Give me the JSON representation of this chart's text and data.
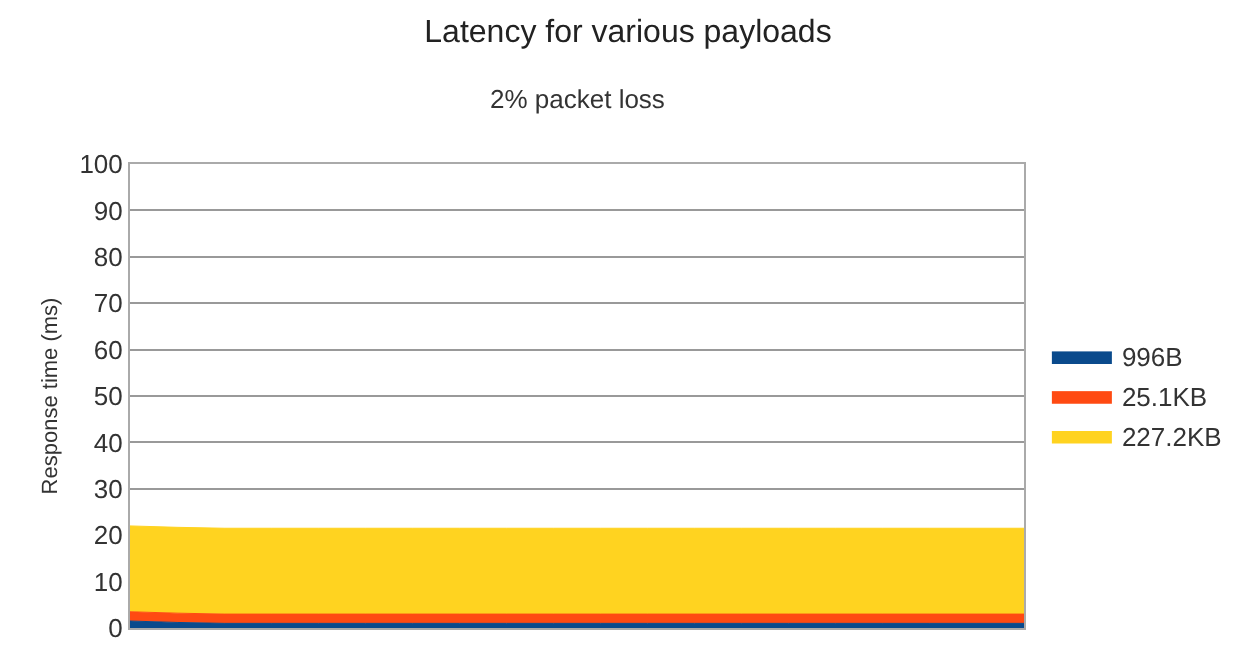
{
  "chart_data": {
    "type": "area",
    "stacked": true,
    "title": "Latency for various payloads",
    "subtitle": "2% packet loss",
    "ylabel": "Response time (ms)",
    "categories": [
      null,
      null,
      null,
      null,
      null,
      null,
      null,
      null,
      null,
      null,
      null,
      null,
      null,
      null,
      null,
      null,
      null,
      null,
      null,
      null
    ],
    "series": [
      {
        "name": "996B",
        "color": "#0a4a8c",
        "values": [
          1.5,
          1.2,
          1,
          1,
          1,
          1,
          1,
          1,
          1,
          1,
          1,
          1,
          1,
          1,
          1,
          1,
          1,
          1,
          1,
          1
        ]
      },
      {
        "name": "25.1KB",
        "color": "#ff4a12",
        "values": [
          2,
          2,
          2,
          2,
          2,
          2,
          2,
          2,
          2,
          2,
          2,
          2,
          2,
          2,
          2,
          2,
          2,
          2,
          2,
          2
        ]
      },
      {
        "name": "227.2KB",
        "color": "#ffd320",
        "values": [
          18.5,
          18.5,
          18.5,
          18.5,
          18.5,
          18.5,
          18.5,
          18.5,
          18.5,
          18.5,
          18.5,
          18.5,
          18.5,
          18.5,
          18.5,
          18.5,
          18.5,
          18.5,
          18.5,
          18.5
        ]
      }
    ],
    "ylim": [
      0,
      100
    ],
    "yticks": [
      0,
      10,
      20,
      30,
      40,
      50,
      60,
      70,
      80,
      90,
      100
    ],
    "grid": "y",
    "legend": "right",
    "tick_labels": "y"
  }
}
